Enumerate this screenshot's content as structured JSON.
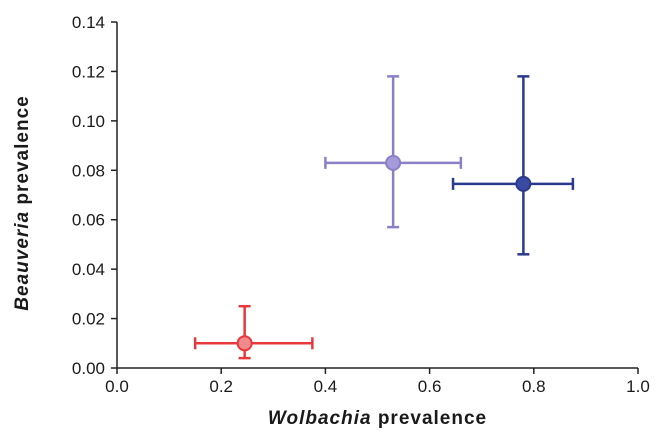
{
  "chart_data": {
    "type": "scatter",
    "title": "",
    "xlabel": {
      "italic": "Wolbachia",
      "rest": " prevalence"
    },
    "ylabel": {
      "italic": "Beauveria",
      "rest": " prevalence"
    },
    "xlim": [
      0,
      1.0
    ],
    "ylim": [
      0,
      0.14
    ],
    "x_ticks": [
      0,
      0.2,
      0.4,
      0.6,
      0.8,
      1.0
    ],
    "x_tick_labels": [
      "0.0",
      "0.2",
      "0.4",
      "0.6",
      "0.8",
      "1.0"
    ],
    "y_ticks": [
      0,
      0.02,
      0.04,
      0.06,
      0.08,
      0.1,
      0.12,
      0.14
    ],
    "y_tick_labels": [
      "0.00",
      "0.02",
      "0.04",
      "0.06",
      "0.08",
      "0.10",
      "0.12",
      "0.14"
    ],
    "grid": false,
    "points": [
      {
        "x": 0.245,
        "y": 0.01,
        "x_err": [
          0.15,
          0.375
        ],
        "y_err": [
          0.004,
          0.025
        ],
        "color": "#e8383d",
        "fill": "#f08a8c"
      },
      {
        "x": 0.53,
        "y": 0.083,
        "x_err": [
          0.4,
          0.66
        ],
        "y_err": [
          0.057,
          0.118
        ],
        "color": "#8a80c8",
        "fill": "#a69ad8"
      },
      {
        "x": 0.78,
        "y": 0.0745,
        "x_err": [
          0.645,
          0.875
        ],
        "y_err": [
          0.046,
          0.118
        ],
        "color": "#2b3a8f",
        "fill": "#3b4aa3"
      }
    ]
  }
}
